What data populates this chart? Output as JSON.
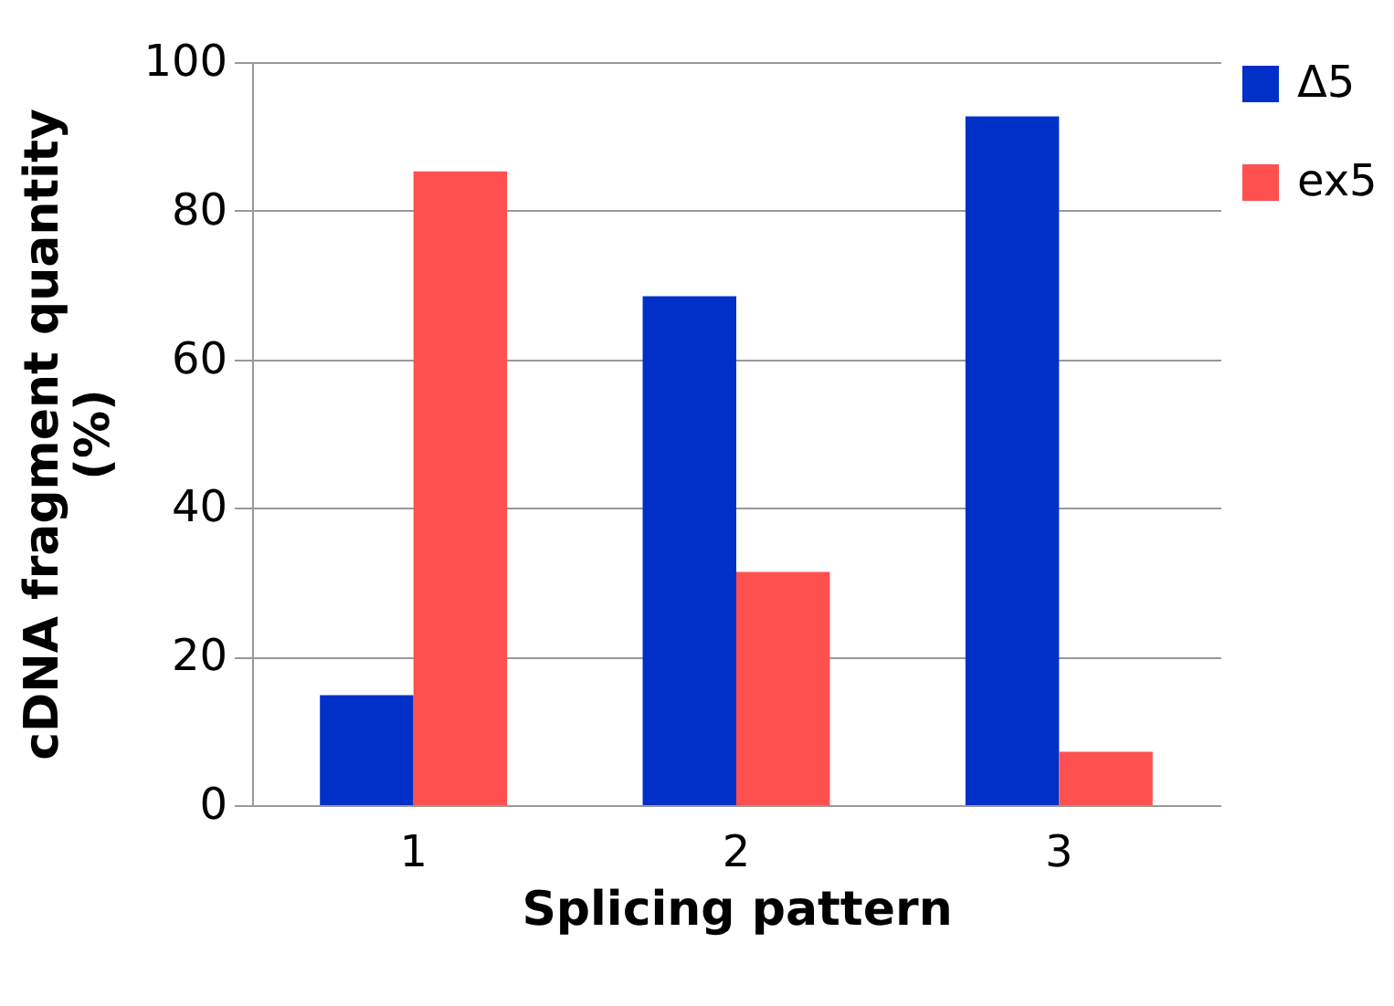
{
  "chart_data": {
    "type": "bar",
    "xlabel": "Splicing pattern",
    "ylabel": "cDNA fragment quantity\n(%)",
    "categories": [
      "1",
      "2",
      "3"
    ],
    "series": [
      {
        "name": "Δ5",
        "color": "#0030c8",
        "values": [
          14.8,
          68.5,
          92.7
        ]
      },
      {
        "name": "ex5",
        "color": "#ff5050",
        "values": [
          85.3,
          31.4,
          7.2
        ]
      }
    ],
    "ylim": [
      0,
      100
    ],
    "yticks": [
      0,
      20,
      40,
      60,
      80,
      100
    ],
    "grid": "y",
    "legend": "top right"
  }
}
